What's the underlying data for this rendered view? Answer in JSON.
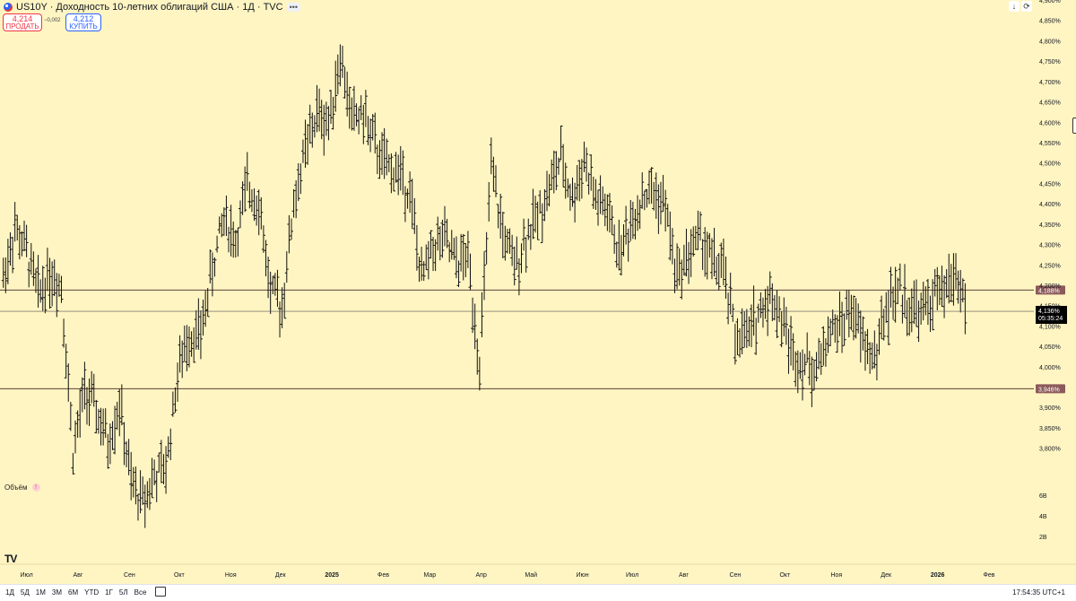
{
  "header": {
    "symbol_title": "US10Y · Доходность 10-летних облигаций США · 1Д · TVC",
    "more_icon": "dots-icon"
  },
  "trade": {
    "sell_price": "4,214",
    "sell_label": "ПРОДАТЬ",
    "spread": "−0,002",
    "buy_price": "4,212",
    "buy_label": "КУПИТЬ"
  },
  "volume": {
    "label": "Объём",
    "warning_icon": "!"
  },
  "logo": "TV",
  "toolbar_top": {
    "down_arrow": "↓",
    "refresh": "⟳"
  },
  "bottom_bar": {
    "timeframes": [
      "1Д",
      "5Д",
      "1М",
      "3М",
      "6М",
      "YTD",
      "1Г",
      "5Л",
      "Все"
    ],
    "clock": "17:54:35 UTC+1",
    "settings_icon": "gear-icon"
  },
  "chart_data": {
    "type": "bar",
    "subtype": "ohlc-daily",
    "title": "US10Y · Доходность 10-летних облигаций США · 1Д · TVC",
    "xlabel": "",
    "ylabel": "",
    "ylim": [
      3.72,
      4.9
    ],
    "y_ticks": [
      {
        "value": 4.9,
        "label": "4,900%"
      },
      {
        "value": 4.85,
        "label": "4,850%"
      },
      {
        "value": 4.8,
        "label": "4,800%"
      },
      {
        "value": 4.75,
        "label": "4,750%"
      },
      {
        "value": 4.7,
        "label": "4,700%"
      },
      {
        "value": 4.65,
        "label": "4,650%"
      },
      {
        "value": 4.6,
        "label": "4,600%"
      },
      {
        "value": 4.55,
        "label": "4,550%"
      },
      {
        "value": 4.5,
        "label": "4,500%"
      },
      {
        "value": 4.45,
        "label": "4,450%"
      },
      {
        "value": 4.4,
        "label": "4,400%"
      },
      {
        "value": 4.35,
        "label": "4,350%"
      },
      {
        "value": 4.3,
        "label": "4,300%"
      },
      {
        "value": 4.25,
        "label": "4,250%"
      },
      {
        "value": 4.2,
        "label": "4,200%"
      },
      {
        "value": 4.15,
        "label": "4,150%"
      },
      {
        "value": 4.1,
        "label": "4,100%"
      },
      {
        "value": 4.05,
        "label": "4,050%"
      },
      {
        "value": 4.0,
        "label": "4,000%"
      },
      {
        "value": 3.9,
        "label": "3,900%"
      },
      {
        "value": 3.85,
        "label": "3,850%"
      },
      {
        "value": 3.8,
        "label": "3,800%"
      }
    ],
    "volume_ticks": [
      "6B",
      "4B",
      "2B"
    ],
    "x_ticks": [
      {
        "label": "Июл",
        "date": "2024-07-01"
      },
      {
        "label": "Авг",
        "date": "2024-08-01"
      },
      {
        "label": "Сен",
        "date": "2024-09-01"
      },
      {
        "label": "Окт",
        "date": "2024-10-01"
      },
      {
        "label": "Ноя",
        "date": "2024-11-01"
      },
      {
        "label": "Дек",
        "date": "2024-12-01"
      },
      {
        "label": "2025",
        "date": "2025-01-01",
        "bold": true
      },
      {
        "label": "Фев",
        "date": "2025-02-01"
      },
      {
        "label": "Мар",
        "date": "2025-03-01"
      },
      {
        "label": "Апр",
        "date": "2025-04-01"
      },
      {
        "label": "Май",
        "date": "2025-05-01"
      },
      {
        "label": "Июн",
        "date": "2025-06-01"
      },
      {
        "label": "Июл",
        "date": "2025-07-01"
      },
      {
        "label": "Авг",
        "date": "2025-08-01"
      },
      {
        "label": "Сен",
        "date": "2025-09-01"
      },
      {
        "label": "Окт",
        "date": "2025-10-01"
      },
      {
        "label": "Ноя",
        "date": "2025-11-01"
      },
      {
        "label": "Дек",
        "date": "2025-12-01"
      },
      {
        "label": "2026",
        "date": "2026-01-01",
        "bold": true
      },
      {
        "label": "Фев",
        "date": "2026-02-01"
      }
    ],
    "date_range": [
      "2024-06-15",
      "2026-02-28"
    ],
    "horizontal_lines": [
      {
        "value": 4.188,
        "label": "4,188%",
        "color": "#5d4037"
      },
      {
        "value": 3.946,
        "label": "3,946%",
        "color": "#5d4037"
      }
    ],
    "current_price": {
      "value": 4.136,
      "label": "4,136%",
      "countdown": "05:35:24",
      "color": "#000000"
    },
    "series": [
      {
        "values": [
          [
            "2024-06-17",
            4.22
          ],
          [
            "2024-06-24",
            4.34
          ],
          [
            "2024-07-01",
            4.28
          ],
          [
            "2024-07-08",
            4.18
          ],
          [
            "2024-07-15",
            4.23
          ],
          [
            "2024-07-22",
            4.2
          ],
          [
            "2024-07-29",
            3.79
          ],
          [
            "2024-08-05",
            3.94
          ],
          [
            "2024-08-12",
            3.89
          ],
          [
            "2024-08-19",
            3.81
          ],
          [
            "2024-08-26",
            3.91
          ],
          [
            "2024-09-02",
            3.71
          ],
          [
            "2024-09-09",
            3.67
          ],
          [
            "2024-09-16",
            3.73
          ],
          [
            "2024-09-23",
            3.75
          ],
          [
            "2024-09-30",
            3.98
          ],
          [
            "2024-10-07",
            4.08
          ],
          [
            "2024-10-14",
            4.08
          ],
          [
            "2024-10-21",
            4.24
          ],
          [
            "2024-10-28",
            4.37
          ],
          [
            "2024-11-04",
            4.31
          ],
          [
            "2024-11-11",
            4.44
          ],
          [
            "2024-11-18",
            4.41
          ],
          [
            "2024-11-25",
            4.18
          ],
          [
            "2024-12-02",
            4.15
          ],
          [
            "2024-12-09",
            4.4
          ],
          [
            "2024-12-16",
            4.53
          ],
          [
            "2024-12-23",
            4.62
          ],
          [
            "2024-12-30",
            4.6
          ],
          [
            "2025-01-06",
            4.76
          ],
          [
            "2025-01-13",
            4.61
          ],
          [
            "2025-01-20",
            4.62
          ],
          [
            "2025-01-27",
            4.54
          ],
          [
            "2025-02-03",
            4.49
          ],
          [
            "2025-02-10",
            4.48
          ],
          [
            "2025-02-17",
            4.43
          ],
          [
            "2025-02-24",
            4.21
          ],
          [
            "2025-03-03",
            4.3
          ],
          [
            "2025-03-10",
            4.31
          ],
          [
            "2025-03-17",
            4.25
          ],
          [
            "2025-03-24",
            4.27
          ],
          [
            "2025-03-31",
            4.01
          ],
          [
            "2025-04-07",
            4.48
          ],
          [
            "2025-04-14",
            4.33
          ],
          [
            "2025-04-21",
            4.24
          ],
          [
            "2025-04-28",
            4.32
          ],
          [
            "2025-05-05",
            4.37
          ],
          [
            "2025-05-12",
            4.44
          ],
          [
            "2025-05-19",
            4.51
          ],
          [
            "2025-05-26",
            4.41
          ],
          [
            "2025-06-02",
            4.51
          ],
          [
            "2025-06-09",
            4.41
          ],
          [
            "2025-06-16",
            4.38
          ],
          [
            "2025-06-23",
            4.28
          ],
          [
            "2025-06-30",
            4.35
          ],
          [
            "2025-07-07",
            4.42
          ],
          [
            "2025-07-14",
            4.43
          ],
          [
            "2025-07-21",
            4.39
          ],
          [
            "2025-07-28",
            4.22
          ],
          [
            "2025-08-04",
            4.28
          ],
          [
            "2025-08-11",
            4.32
          ],
          [
            "2025-08-18",
            4.26
          ],
          [
            "2025-08-25",
            4.23
          ],
          [
            "2025-09-01",
            4.08
          ],
          [
            "2025-09-08",
            4.07
          ],
          [
            "2025-09-15",
            4.13
          ],
          [
            "2025-09-22",
            4.18
          ],
          [
            "2025-09-29",
            4.12
          ],
          [
            "2025-10-06",
            4.03
          ],
          [
            "2025-10-13",
            4.01
          ],
          [
            "2025-10-20",
            3.99
          ],
          [
            "2025-10-27",
            4.08
          ],
          [
            "2025-11-03",
            4.1
          ],
          [
            "2025-11-10",
            4.14
          ],
          [
            "2025-11-17",
            4.06
          ],
          [
            "2025-11-24",
            4.02
          ],
          [
            "2025-12-01",
            4.14
          ],
          [
            "2025-12-08",
            4.19
          ],
          [
            "2025-12-15",
            4.15
          ],
          [
            "2025-12-22",
            4.13
          ],
          [
            "2025-12-29",
            4.17
          ],
          [
            "2026-01-05",
            4.18
          ],
          [
            "2026-01-12",
            4.23
          ],
          [
            "2026-01-19",
            4.136
          ]
        ]
      }
    ],
    "grid": false,
    "legend": "none",
    "colors": {
      "background": "#fff5c2",
      "bars": "#000000",
      "levels": "#5d4037"
    }
  }
}
